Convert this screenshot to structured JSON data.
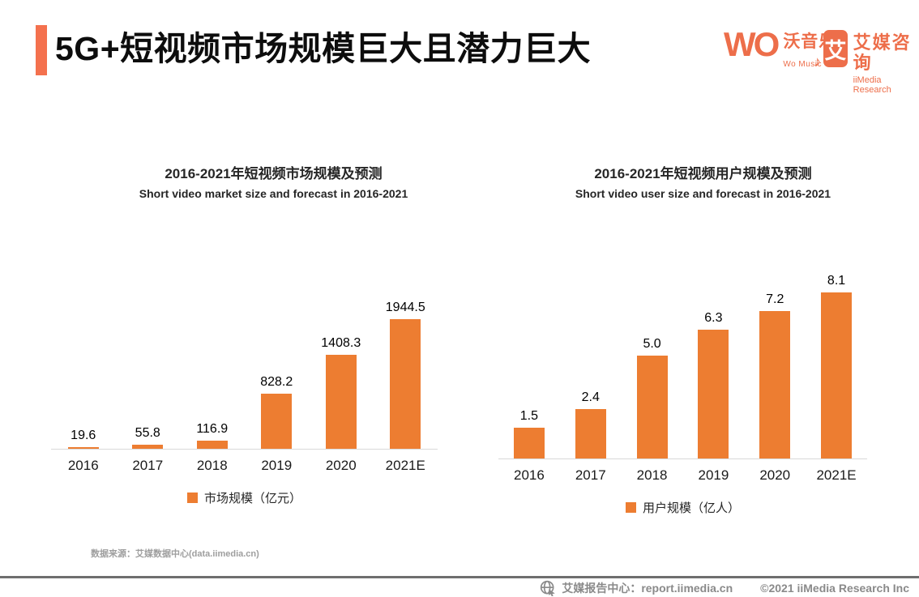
{
  "header": {
    "title": "5G+短视频市场规模巨大且潜力巨大",
    "accent_color": "#F4714E"
  },
  "logos": {
    "womusic": {
      "wordmark": "WO",
      "note_icon": "♪",
      "cn": "沃音乐",
      "en": "Wo Music"
    },
    "iimedia": {
      "glyph": "艾",
      "cn": "艾媒咨询",
      "en": "iiMedia Research",
      "brand_color": "#ED6E4A"
    }
  },
  "chart_data": [
    {
      "type": "bar",
      "title": "2016-2021年短视频市场规模及预测",
      "subtitle": "Short video market size and forecast in 2016-2021",
      "categories": [
        "2016",
        "2017",
        "2018",
        "2019",
        "2020",
        "2021E"
      ],
      "values": [
        19.6,
        55.8,
        116.9,
        828.2,
        1408.3,
        1944.5
      ],
      "labels": [
        "19.6",
        "55.8",
        "116.9",
        "828.2",
        "1408.3",
        "1944.5"
      ],
      "legend": "市场规模（亿元）",
      "bar_color": "#ED7D31",
      "ylim": [
        0,
        2000
      ],
      "grid": false,
      "legend_position": "bottom"
    },
    {
      "type": "bar",
      "title": "2016-2021年短视频用户规模及预测",
      "subtitle": "Short video user size and forecast in 2016-2021",
      "categories": [
        "2016",
        "2017",
        "2018",
        "2019",
        "2020",
        "2021E"
      ],
      "values": [
        1.5,
        2.4,
        5.0,
        6.3,
        7.2,
        8.1
      ],
      "labels": [
        "1.5",
        "2.4",
        "5.0",
        "6.3",
        "7.2",
        "8.1"
      ],
      "legend": "用户规模（亿人）",
      "bar_color": "#ED7D31",
      "ylim": [
        0,
        8.5
      ],
      "grid": false,
      "legend_position": "bottom"
    }
  ],
  "source_note": "数据来源：艾媒数据中心(data.iimedia.cn)",
  "footer": {
    "report_center": "艾媒报告中心：report.iimedia.cn",
    "copyright": "©2021  iiMedia Research  Inc"
  }
}
